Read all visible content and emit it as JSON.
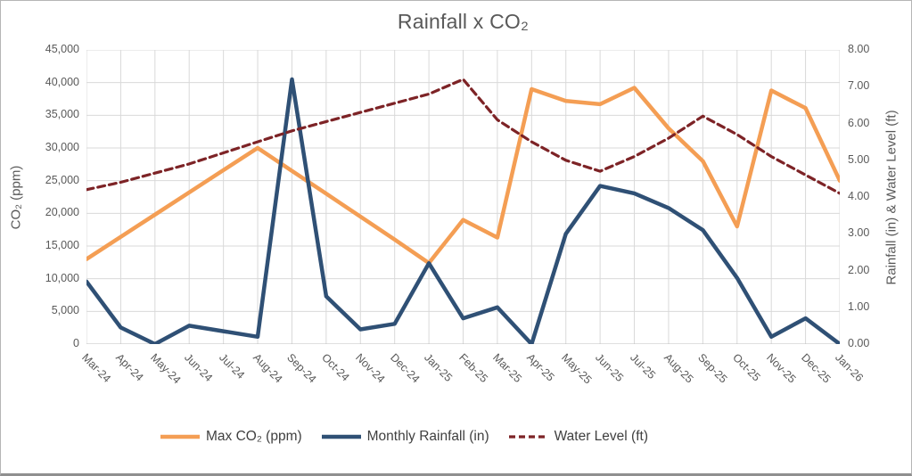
{
  "window": {
    "background": "#ffffff",
    "border_color": "#b5b5b5"
  },
  "chart_data": {
    "type": "line",
    "title": "Rainfall x CO₂",
    "categories": [
      "Mar-24",
      "Apr-24",
      "May-24",
      "Jun-24",
      "Jul-24",
      "Aug-24",
      "Sep-24",
      "Oct-24",
      "Nov-24",
      "Dec-24",
      "Jan-25",
      "Feb-25",
      "Mar-25",
      "Apr-25",
      "May-25",
      "Jun-25",
      "Jul-25",
      "Aug-25",
      "Sep-25",
      "Oct-25",
      "Nov-25",
      "Dec-25",
      "Jan-26"
    ],
    "series": [
      {
        "name": "Max CO₂ (ppm)",
        "axis": "left",
        "color": "#F49E54",
        "style": "solid",
        "stroke_width": 4.5,
        "values": [
          13000,
          16400,
          19800,
          23200,
          26600,
          30000,
          26500,
          23000,
          19500,
          16000,
          12400,
          19000,
          16300,
          39000,
          37200,
          36700,
          39200,
          33000,
          28000,
          18000,
          38800,
          36100,
          25000
        ]
      },
      {
        "name": "Monthly Rainfall (in)",
        "axis": "right",
        "color": "#2F5075",
        "style": "solid",
        "stroke_width": 4.5,
        "values": [
          1.7,
          0.45,
          0,
          0.5,
          0.35,
          0.2,
          7.2,
          1.3,
          0.4,
          0.55,
          2.2,
          0.7,
          1.0,
          0,
          3.0,
          4.3,
          4.1,
          3.7,
          3.1,
          1.8,
          0.2,
          0.7,
          0
        ]
      },
      {
        "name": "Water Level (ft)",
        "axis": "right",
        "color": "#7D2326",
        "style": "dashed",
        "stroke_width": 3.2,
        "values": [
          4.2,
          4.4,
          4.65,
          4.9,
          5.2,
          5.5,
          5.8,
          6.05,
          6.3,
          6.55,
          6.8,
          7.2,
          6.1,
          5.5,
          5.0,
          4.7,
          5.1,
          5.6,
          6.2,
          5.7,
          5.1,
          4.6,
          4.1
        ]
      }
    ],
    "left_axis": {
      "title": "CO₂ (ppm)",
      "min": 0,
      "max": 45000,
      "tick_labels": [
        "0",
        "5,000",
        "10,000",
        "15,000",
        "20,000",
        "25,000",
        "30,000",
        "35,000",
        "40,000",
        "45,000"
      ]
    },
    "right_axis": {
      "title": "Rainfall (in) & Water Level (ft)",
      "min": 0,
      "max": 8,
      "tick_labels": [
        "0.00",
        "1.00",
        "2.00",
        "3.00",
        "4.00",
        "5.00",
        "6.00",
        "7.00",
        "8.00"
      ]
    },
    "legend_position": "bottom",
    "grid": true,
    "gridline_color": "#D9D9D9",
    "axis_line_color": "#BFBFBF",
    "text_color": "#595959",
    "legend_text_color": "#404040"
  }
}
